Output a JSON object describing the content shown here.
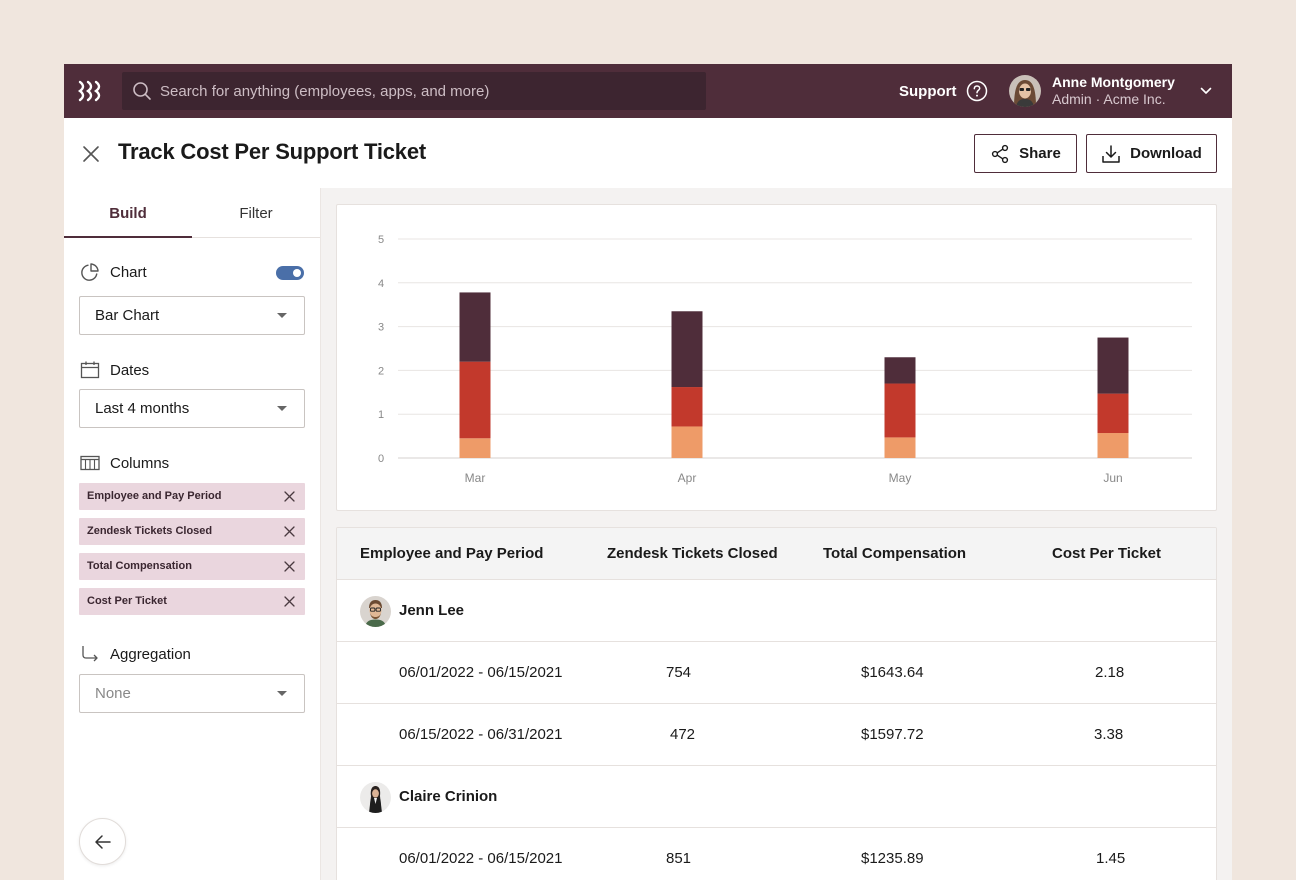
{
  "topbar": {
    "search_placeholder": "Search for anything (employees, apps, and more)",
    "support_label": "Support",
    "user_name": "Anne Montgomery",
    "user_role": "Admin · Acme Inc."
  },
  "header": {
    "title": "Track Cost Per Support Ticket",
    "share_label": "Share",
    "download_label": "Download"
  },
  "build_panel": {
    "tabs": [
      "Build",
      "Filter"
    ],
    "chart_label": "Chart",
    "chart_enabled": true,
    "chart_type": "Bar Chart",
    "dates_label": "Dates",
    "dates_value": "Last 4 months",
    "columns_label": "Columns",
    "columns": [
      "Employee and Pay Period",
      "Zendesk Tickets Closed",
      "Total Compensation",
      "Cost Per Ticket"
    ],
    "aggregation_label": "Aggregation",
    "aggregation_value": "None"
  },
  "chart_data": {
    "type": "bar",
    "stacked": true,
    "categories": [
      "Mar",
      "Apr",
      "May",
      "Jun"
    ],
    "series": [
      {
        "name": "segment-1",
        "color": "#ee9b68",
        "values": [
          0.45,
          0.72,
          0.47,
          0.57
        ]
      },
      {
        "name": "segment-2",
        "color": "#c2392c",
        "values": [
          1.75,
          0.9,
          1.23,
          0.9
        ]
      },
      {
        "name": "segment-3",
        "color": "#4f2d3a",
        "values": [
          1.58,
          1.73,
          0.6,
          1.28
        ]
      }
    ],
    "ylim": [
      0,
      5
    ],
    "yticks": [
      "0",
      "1",
      "2",
      "3",
      "4",
      "5"
    ],
    "grid": true
  },
  "table": {
    "headers": [
      "Employee and Pay Period",
      "Zendesk Tickets Closed",
      "Total Compensation",
      "Cost Per Ticket"
    ],
    "groups": [
      {
        "name": "Jenn Lee",
        "rows": [
          {
            "period": "06/01/2022 - 06/15/2021",
            "tickets": "754",
            "compensation": "$1643.64",
            "cost": "2.18"
          },
          {
            "period": "06/15/2022 - 06/31/2021",
            "tickets": "472",
            "compensation": "$1597.72",
            "cost": "3.38"
          }
        ]
      },
      {
        "name": "Claire Crinion",
        "rows": [
          {
            "period": "06/01/2022 - 06/15/2021",
            "tickets": "851",
            "compensation": "$1235.89",
            "cost": "1.45"
          }
        ]
      }
    ]
  }
}
